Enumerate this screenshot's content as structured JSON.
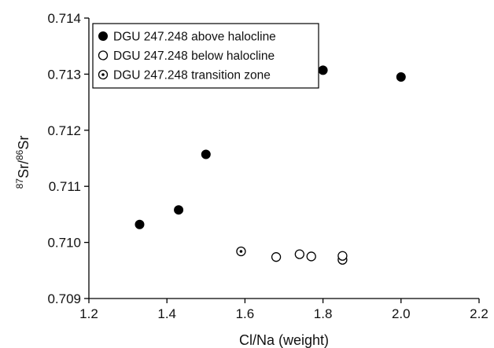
{
  "chart_data": {
    "type": "scatter",
    "xlabel": "Cl/Na (weight)",
    "ylabel_parts": [
      {
        "text": "87",
        "sup": true
      },
      {
        "text": "Sr/",
        "sup": false
      },
      {
        "text": "86",
        "sup": true
      },
      {
        "text": "Sr",
        "sup": false
      }
    ],
    "xlim": [
      1.2,
      2.2
    ],
    "ylim": [
      0.709,
      0.714
    ],
    "xticks": [
      "1.2",
      "1.4",
      "1.6",
      "1.8",
      "2.0",
      "2.2"
    ],
    "yticks": [
      "0.709",
      "0.710",
      "0.711",
      "0.712",
      "0.713",
      "0.714"
    ],
    "grid": false,
    "legend_position": "top-left",
    "series": [
      {
        "name": "DGU 247.248 above halocline",
        "marker": "filled-circle",
        "color": "#000000",
        "points": [
          [
            1.33,
            0.71032
          ],
          [
            1.43,
            0.71058
          ],
          [
            1.5,
            0.71157
          ],
          [
            1.8,
            0.71307
          ],
          [
            2.0,
            0.71295
          ]
        ]
      },
      {
        "name": "DGU 247.248 below halocline",
        "marker": "open-circle",
        "color": "#000000",
        "points": [
          [
            1.68,
            0.70974
          ],
          [
            1.74,
            0.70979
          ],
          [
            1.77,
            0.70975
          ],
          [
            1.85,
            0.70969
          ],
          [
            1.85,
            0.70976
          ]
        ]
      },
      {
        "name": "DGU 247.248 transition zone",
        "marker": "dotted-circle",
        "color": "#000000",
        "points": [
          [
            1.59,
            0.70984
          ]
        ]
      }
    ]
  }
}
